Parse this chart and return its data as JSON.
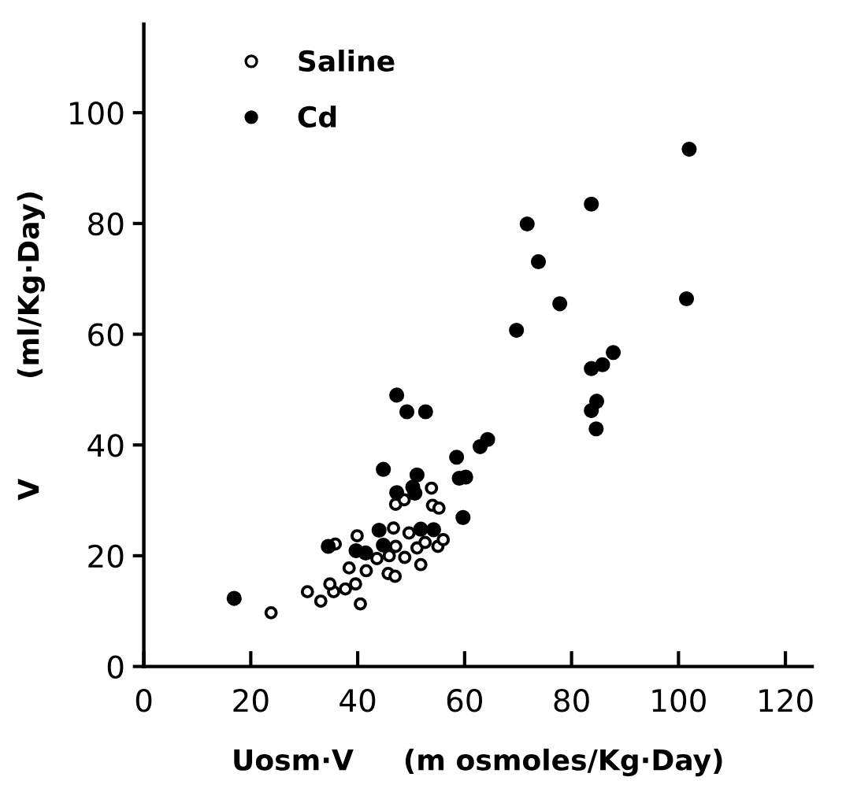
{
  "chart_data": {
    "type": "scatter",
    "xlabel": "Uosm·V     (m osmoles/Kg·Day)",
    "ylabel": "V          (ml/Kg·Day)",
    "xlim": [
      0,
      125
    ],
    "ylim": [
      0,
      116
    ],
    "xticks": [
      0,
      20,
      40,
      60,
      80,
      100,
      120
    ],
    "yticks": [
      0,
      20,
      40,
      60,
      80,
      100
    ],
    "grid": false,
    "legend": "top left",
    "marker": "circle",
    "series": [
      {
        "name": "Saline",
        "color": "#000000",
        "x": [
          23.8,
          30.6,
          33.1,
          35.5,
          34.8,
          37.7,
          39.6,
          40.5,
          38.4,
          41.6,
          39.9,
          35.8,
          45.7,
          47,
          45.9,
          43.6,
          47.1,
          46.7,
          48.8,
          49.6,
          51.8,
          51.1,
          52.6,
          55,
          56,
          53.8,
          54,
          55.2,
          47.1,
          48.7
        ],
        "values": [
          9.7,
          13.5,
          11.8,
          13.5,
          14.9,
          14.0,
          14.9,
          11.3,
          17.8,
          17.3,
          23.6,
          22.1,
          16.8,
          16.3,
          20,
          19.5,
          21.7,
          25,
          19.7,
          24.1,
          18.4,
          21.4,
          22.4,
          21.7,
          22.9,
          32.2,
          29.1,
          28.6,
          29.3,
          30.1
        ]
      },
      {
        "name": "Cd",
        "color": "#000000",
        "x": [
          16.9,
          47.3,
          49.2,
          52.7,
          44.8,
          51.1,
          47.3,
          50.3,
          58.5,
          59,
          60.2,
          59.7,
          62.9,
          64.3,
          69.7,
          71.7,
          73.8,
          77.8,
          83.7,
          83.7,
          85.8,
          87.8,
          83.7,
          84.7,
          84.6,
          102,
          101.5,
          44,
          51.8,
          54.2,
          39.7,
          41.5,
          44.8,
          34.5,
          50.7
        ],
        "values": [
          12.3,
          49.0,
          46.0,
          46.0,
          35.6,
          34.6,
          31.4,
          32.4,
          37.8,
          34,
          34.2,
          26.9,
          39.7,
          41,
          60.7,
          79.9,
          73.1,
          65.5,
          83.5,
          53.8,
          54.5,
          56.7,
          46.2,
          47.9,
          42.9,
          93.4,
          66.4,
          24.6,
          24.8,
          24.7,
          20.9,
          20.5,
          21.9,
          21.7,
          31.3
        ]
      }
    ]
  }
}
